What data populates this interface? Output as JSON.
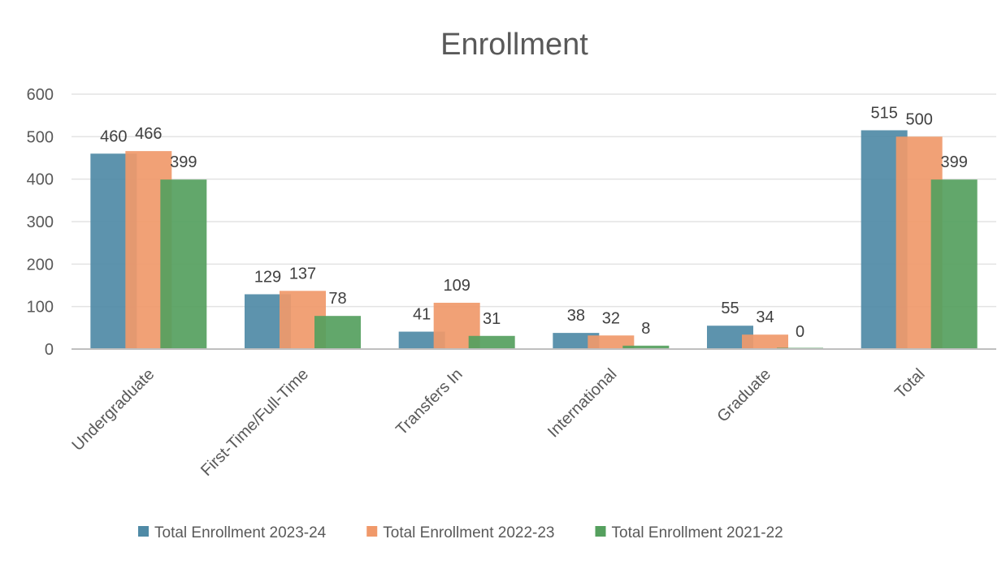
{
  "chart_data": {
    "type": "bar",
    "title": "Enrollment",
    "xlabel": "",
    "ylabel": "",
    "ylim": [
      0,
      600
    ],
    "yticks": [
      0,
      100,
      200,
      300,
      400,
      500,
      600
    ],
    "grid": true,
    "legend_position": "bottom",
    "categories": [
      "Undergraduate",
      "First-Time/Full-Time",
      "Transfers  In",
      "International",
      "Graduate",
      "Total"
    ],
    "series": [
      {
        "name": "Total Enrollment  2023-24",
        "color": "#4f8aa6",
        "values": [
          460,
          129,
          41,
          38,
          55,
          515
        ]
      },
      {
        "name": "Total Enrollment  2022-23",
        "color": "#f0996a",
        "values": [
          466,
          137,
          109,
          32,
          34,
          500
        ]
      },
      {
        "name": "Total Enrollment  2021-22",
        "color": "#55a05e",
        "values": [
          399,
          78,
          31,
          8,
          0,
          399
        ]
      }
    ]
  }
}
